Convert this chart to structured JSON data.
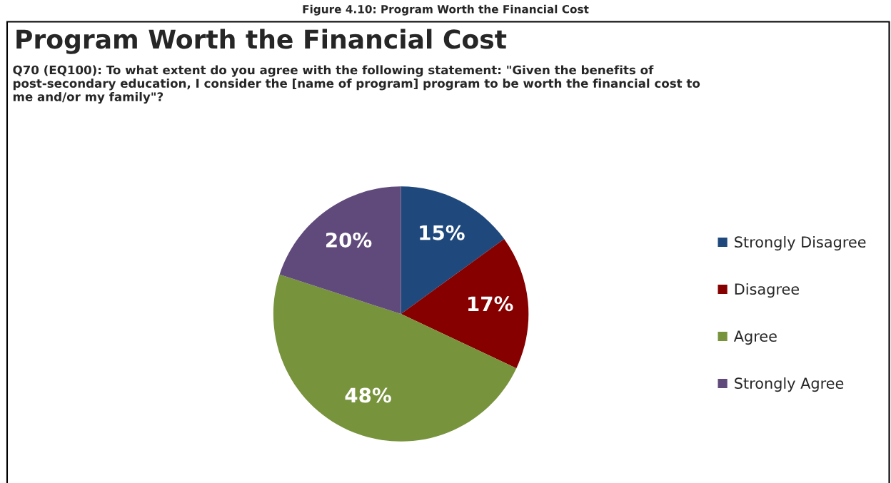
{
  "chart_data": {
    "type": "pie",
    "title": "Program Worth the Financial Cost",
    "subtitle": "Q70 (EQ100): To what extent do you agree with the following statement: \"Given the benefits of post-secondary education, I consider the [name of program] program to be worth the financial cost to me and/or my family\"?",
    "annotations": [
      "Figure 4.10: Program Worth the Financial Cost"
    ],
    "categories": [
      "Strongly Disagree",
      "Disagree",
      "Agree",
      "Strongly Agree"
    ],
    "values": [
      15,
      17,
      48,
      20
    ],
    "colors": [
      "#1f497d",
      "#860000",
      "#77933c",
      "#604a7b"
    ],
    "value_labels": [
      "15%",
      "17%",
      "48%",
      "20%"
    ],
    "legend": "right"
  }
}
